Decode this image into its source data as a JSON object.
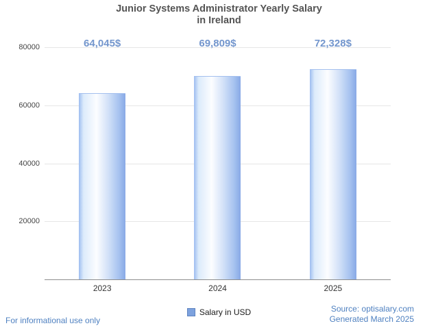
{
  "title": {
    "line1": "Junior Systems Administrator Yearly Salary",
    "line2": "in Ireland"
  },
  "chart_data": {
    "type": "bar",
    "title": "Junior Systems Administrator Yearly Salary in Ireland",
    "categories": [
      "2023",
      "2024",
      "2025"
    ],
    "values": [
      64045,
      69809,
      72328
    ],
    "value_labels": [
      "64,045$",
      "69,809$",
      "72,328$"
    ],
    "series_name": "Salary in USD",
    "xlabel": "",
    "ylabel": "",
    "ylim": [
      0,
      80000
    ],
    "yticks": [
      20000,
      40000,
      60000,
      80000
    ],
    "grid": true,
    "legend": {
      "label": "Salary in USD",
      "position": "bottom"
    },
    "bar_color": "#7da2de"
  },
  "footer": {
    "left": "For informational use only",
    "source": "Source: optisalary.com",
    "generated": "Generated March 2025"
  },
  "colors": {
    "accent_blue": "#4e80c0",
    "value_label_blue": "#7396cd",
    "gridline": "#e6e6e6",
    "axis_line": "#8c8c8c"
  }
}
